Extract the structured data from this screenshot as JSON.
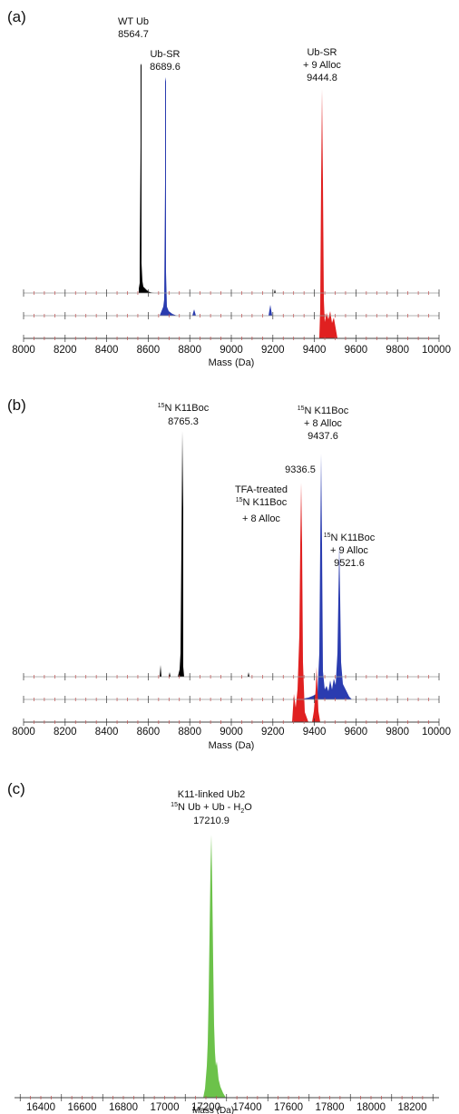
{
  "chart_data": [
    {
      "type": "line",
      "panel": "(a)",
      "xlabel": "Mass (Da)",
      "xlim": [
        8000,
        10000
      ],
      "xticks": [
        8000,
        8200,
        8400,
        8600,
        8800,
        9000,
        9200,
        9400,
        9600,
        9800,
        10000
      ],
      "series": [
        {
          "name": "WT Ub",
          "color": "#000000",
          "points": [
            [
              8530,
              0.01
            ],
            [
              8545,
              0.03
            ],
            [
              8550,
              0.08
            ],
            [
              8553,
              0.12
            ],
            [
              8558,
              0.06
            ],
            [
              8562,
              0.2
            ],
            [
              8564.7,
              1.0
            ],
            [
              8567,
              0.5
            ],
            [
              8570,
              0.3
            ],
            [
              8575,
              0.15
            ],
            [
              8580,
              0.08
            ],
            [
              8590,
              0.05
            ],
            [
              8600,
              0.03
            ],
            [
              8620,
              0.02
            ],
            [
              8650,
              0.01
            ],
            [
              8700,
              0.005
            ],
            [
              9215,
              0.015
            ]
          ]
        },
        {
          "name": "Ub-SR",
          "color": "#2a3cb0",
          "points": [
            [
              8650,
              0.01
            ],
            [
              8665,
              0.04
            ],
            [
              8675,
              0.08
            ],
            [
              8683,
              0.15
            ],
            [
              8689.6,
              1.0
            ],
            [
              8692,
              0.45
            ],
            [
              8696,
              0.2
            ],
            [
              8705,
              0.08
            ],
            [
              8720,
              0.04
            ],
            [
              8740,
              0.02
            ],
            [
              8800,
              0.01
            ],
            [
              8815,
              0.05
            ],
            [
              8825,
              0.01
            ],
            [
              9190,
              0.01
            ],
            [
              9195,
              0.05
            ],
            [
              9200,
              0.01
            ]
          ]
        },
        {
          "name": "Ub-SR + 9 Alloc",
          "color": "#e02020",
          "points": [
            [
              9425,
              0.02
            ],
            [
              9435,
              0.1
            ],
            [
              9440,
              0.3
            ],
            [
              9444.8,
              1.0
            ],
            [
              9447,
              0.4
            ],
            [
              9452,
              0.1
            ],
            [
              9458,
              0.15
            ],
            [
              9465,
              0.2
            ],
            [
              9470,
              0.12
            ],
            [
              9480,
              0.18
            ],
            [
              9488,
              0.08
            ],
            [
              9500,
              0.03
            ]
          ]
        }
      ],
      "annotations": [
        {
          "lines": [
            "WT Ub",
            "8564.7"
          ]
        },
        {
          "lines": [
            "Ub-SR",
            "8689.6"
          ]
        },
        {
          "lines": [
            "Ub-SR",
            "+ 9 Alloc",
            "9444.8"
          ]
        }
      ]
    },
    {
      "type": "line",
      "panel": "(b)",
      "xlabel": "Mass (Da)",
      "xlim": [
        8000,
        10000
      ],
      "xticks": [
        8000,
        8200,
        8400,
        8600,
        8800,
        9000,
        9200,
        9400,
        9600,
        9800,
        10000
      ],
      "series": [
        {
          "name": "¹⁵N K11Boc",
          "color": "#000000",
          "points": [
            [
              8650,
              0.01
            ],
            [
              8660,
              0.05
            ],
            [
              8665,
              0.01
            ],
            [
              8700,
              0.01
            ],
            [
              8705,
              0.03
            ],
            [
              8710,
              0.01
            ],
            [
              8750,
              0.01
            ],
            [
              8758,
              0.05
            ],
            [
              8762,
              0.3
            ],
            [
              8765.3,
              1.0
            ],
            [
              8768,
              0.3
            ],
            [
              8772,
              0.05
            ],
            [
              8780,
              0.01
            ],
            [
              9090,
              0.01
            ],
            [
              9095,
              0.03
            ],
            [
              9100,
              0.01
            ]
          ]
        },
        {
          "name": "¹⁵N K11Boc + 8 Alloc",
          "color": "#2a3cb0",
          "points": [
            [
              9360,
              0.02
            ],
            [
              9380,
              0.04
            ],
            [
              9400,
              0.06
            ],
            [
              9420,
              0.1
            ],
            [
              9430,
              0.3
            ],
            [
              9437.6,
              1.0
            ],
            [
              9442,
              0.3
            ],
            [
              9450,
              0.12
            ],
            [
              9460,
              0.15
            ],
            [
              9470,
              0.1
            ],
            [
              9480,
              0.2
            ],
            [
              9490,
              0.1
            ],
            [
              9500,
              0.15
            ],
            [
              9510,
              0.2
            ],
            [
              9521.6,
              0.55
            ],
            [
              9526,
              0.2
            ],
            [
              9535,
              0.1
            ],
            [
              9545,
              0.05
            ],
            [
              9555,
              0.02
            ]
          ]
        },
        {
          "name": "TFA-treated ¹⁵N K11Boc + 8 Alloc",
          "color": "#e02020",
          "points": [
            [
              9315,
              0.02
            ],
            [
              9322,
              0.1
            ],
            [
              9330,
              0.3
            ],
            [
              9336.5,
              1.0
            ],
            [
              9340,
              0.3
            ],
            [
              9345,
              0.06
            ],
            [
              9355,
              0.02
            ],
            [
              9410,
              0.02
            ],
            [
              9416,
              0.15
            ],
            [
              9420,
              0.4
            ],
            [
              9424,
              0.15
            ],
            [
              9430,
              0.02
            ]
          ]
        }
      ],
      "annotations": [
        {
          "lines": [
            "15N K11Boc",
            "8765.3"
          ]
        },
        {
          "lines": [
            "15N K11Boc",
            "+ 8 Alloc",
            "9437.6"
          ]
        },
        {
          "lines": [
            "9336.5"
          ]
        },
        {
          "lines": [
            "TFA-treated",
            "15N K11Boc",
            "+ 8 Alloc"
          ]
        },
        {
          "lines": [
            "15N K11Boc",
            "+ 9 Alloc",
            "9521.6"
          ]
        }
      ]
    },
    {
      "type": "line",
      "panel": "(c)",
      "xlabel": "Mass (Da)",
      "xlim": [
        16300,
        18350
      ],
      "xticks": [
        16400,
        16600,
        16800,
        17000,
        17200,
        17400,
        17600,
        17800,
        18000,
        18200
      ],
      "series": [
        {
          "name": "K11-linked Ub2",
          "color": "#6cc24a",
          "points": [
            [
              17185,
              0.02
            ],
            [
              17192,
              0.08
            ],
            [
              17198,
              0.2
            ],
            [
              17203,
              0.35
            ],
            [
              17207,
              0.55
            ],
            [
              17210.9,
              1.0
            ],
            [
              17214,
              0.6
            ],
            [
              17218,
              0.35
            ],
            [
              17222,
              0.2
            ],
            [
              17226,
              0.15
            ],
            [
              17230,
              0.12
            ],
            [
              17235,
              0.08
            ],
            [
              17240,
              0.05
            ],
            [
              17248,
              0.02
            ]
          ]
        }
      ],
      "annotations": [
        {
          "lines": [
            "K11-linked Ub2",
            "15N Ub + Ub - H2O",
            "17210.9"
          ]
        }
      ]
    }
  ]
}
